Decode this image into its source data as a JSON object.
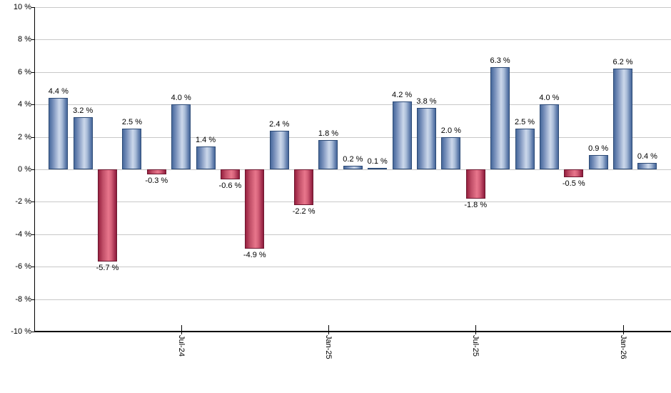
{
  "chart_data": {
    "type": "bar",
    "title": "",
    "xlabel": "",
    "ylabel": "",
    "ylim": [
      -10,
      10
    ],
    "y_tick_step": 2,
    "grid": true,
    "legend": "none",
    "y_tick_labels": [
      "10 %",
      "8 %",
      "6 %",
      "4 %",
      "2 %",
      "0 %",
      "-2 %",
      "-4 %",
      "-6 %",
      "-8 %",
      "-10 %"
    ],
    "bars": [
      {
        "value": 4.4,
        "label": "4.4 %",
        "color": "positive"
      },
      {
        "value": 3.2,
        "label": "3.2 %",
        "color": "positive"
      },
      {
        "value": -5.7,
        "label": "-5.7 %",
        "color": "negative"
      },
      {
        "value": 2.5,
        "label": "2.5 %",
        "color": "positive"
      },
      {
        "value": -0.3,
        "label": "-0.3 %",
        "color": "negative"
      },
      {
        "value": 4.0,
        "label": "4.0 %",
        "color": "positive"
      },
      {
        "value": 1.4,
        "label": "1.4 %",
        "color": "positive"
      },
      {
        "value": -0.6,
        "label": "-0.6 %",
        "color": "negative"
      },
      {
        "value": -4.9,
        "label": "-4.9 %",
        "color": "negative"
      },
      {
        "value": 2.4,
        "label": "2.4 %",
        "color": "positive"
      },
      {
        "value": -2.2,
        "label": "-2.2 %",
        "color": "negative"
      },
      {
        "value": 1.8,
        "label": "1.8 %",
        "color": "positive"
      },
      {
        "value": 0.2,
        "label": "0.2 %",
        "color": "positive"
      },
      {
        "value": 0.1,
        "label": "0.1 %",
        "color": "positive"
      },
      {
        "value": 4.2,
        "label": "4.2 %",
        "color": "positive"
      },
      {
        "value": 3.8,
        "label": "3.8 %",
        "color": "positive"
      },
      {
        "value": 2.0,
        "label": "2.0 %",
        "color": "positive"
      },
      {
        "value": -1.8,
        "label": "-1.8 %",
        "color": "negative"
      },
      {
        "value": 6.3,
        "label": "6.3 %",
        "color": "positive"
      },
      {
        "value": 2.5,
        "label": "2.5 %",
        "color": "positive"
      },
      {
        "value": 4.0,
        "label": "4.0 %",
        "color": "positive"
      },
      {
        "value": -0.5,
        "label": "-0.5 %",
        "color": "negative"
      },
      {
        "value": 0.9,
        "label": "0.9 %",
        "color": "positive"
      },
      {
        "value": 6.2,
        "label": "6.2 %",
        "color": "positive"
      },
      {
        "value": 0.4,
        "label": "0.4 %",
        "color": "positive"
      }
    ],
    "x_ticks": [
      {
        "label": "Jul-24",
        "bar_index": 5
      },
      {
        "label": "Jan-25",
        "bar_index": 11
      },
      {
        "label": "Jul-25",
        "bar_index": 17
      },
      {
        "label": "Jan-26",
        "bar_index": 23
      }
    ],
    "colors": {
      "positive_edge": "#47689b",
      "positive_center": "#ccd8eb",
      "positive_border": "#2c4a76",
      "negative_edge": "#97203f",
      "negative_center": "#e8768c",
      "negative_border": "#6e1730",
      "gridline": "#c8c8c8",
      "axis": "#000000",
      "text": "#000000",
      "background": "#ffffff"
    }
  }
}
